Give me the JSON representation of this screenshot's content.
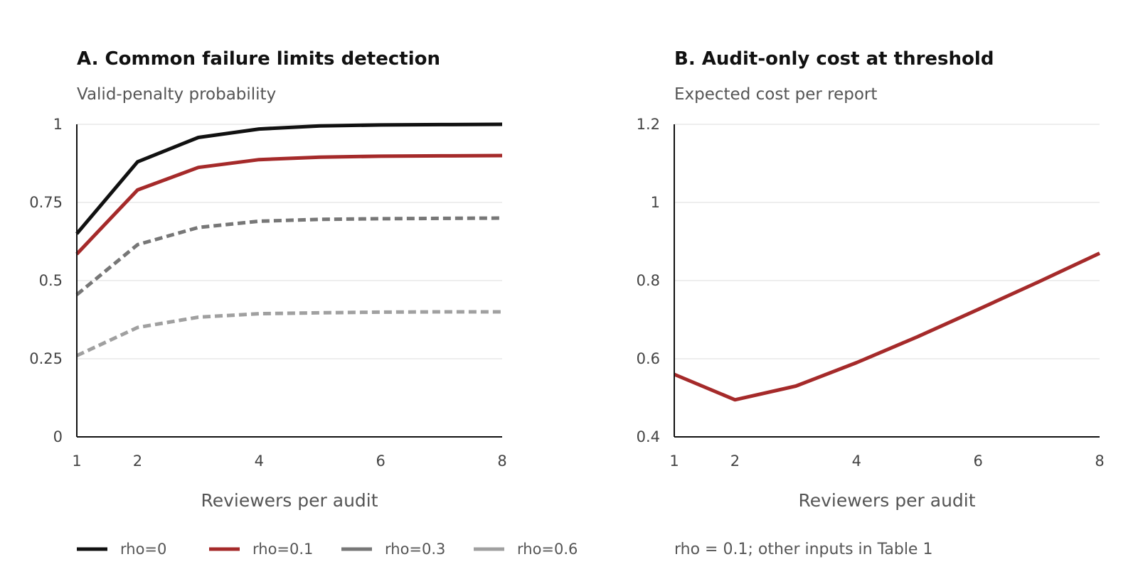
{
  "chart_data": [
    {
      "type": "line",
      "title": "A. Common failure limits detection",
      "subtitle": "Valid-penalty probability",
      "xlabel": "Reviewers per audit",
      "ylabel": "",
      "xlim": [
        1,
        8
      ],
      "ylim": [
        0,
        1
      ],
      "x_ticks": [
        "1",
        "2",
        "4",
        "6",
        "8"
      ],
      "y_ticks": [
        "0",
        "0.25",
        "0.5",
        "0.75",
        "1"
      ],
      "grid": true,
      "legend_position": "bottom",
      "x": [
        1,
        2,
        3,
        4,
        5,
        6,
        7,
        8
      ],
      "series": [
        {
          "name": "rho=0",
          "color": "#111111",
          "dashed": false,
          "values": [
            0.65,
            0.88,
            0.958,
            0.985,
            0.995,
            0.998,
            0.999,
            1.0
          ]
        },
        {
          "name": "rho=0.1",
          "color": "#a52a2a",
          "dashed": false,
          "values": [
            0.585,
            0.79,
            0.862,
            0.887,
            0.895,
            0.898,
            0.899,
            0.9
          ]
        },
        {
          "name": "rho=0.3",
          "color": "#777777",
          "dashed": true,
          "values": [
            0.455,
            0.615,
            0.67,
            0.69,
            0.696,
            0.698,
            0.699,
            0.7
          ]
        },
        {
          "name": "rho=0.6",
          "color": "#a0a0a0",
          "dashed": true,
          "values": [
            0.26,
            0.35,
            0.383,
            0.394,
            0.397,
            0.399,
            0.4,
            0.4
          ]
        }
      ]
    },
    {
      "type": "line",
      "title": "B. Audit-only cost at threshold",
      "subtitle": "Expected cost per report",
      "xlabel": "Reviewers per audit",
      "ylabel": "",
      "xlim": [
        1,
        8
      ],
      "ylim": [
        0.4,
        1.2
      ],
      "x_ticks": [
        "1",
        "2",
        "4",
        "6",
        "8"
      ],
      "y_ticks": [
        "0.4",
        "0.6",
        "0.8",
        "1",
        "1.2"
      ],
      "grid": true,
      "note": "rho = 0.1; other inputs in Table 1",
      "x": [
        1,
        2,
        3,
        4,
        5,
        6,
        7,
        8
      ],
      "series": [
        {
          "name": "",
          "color": "#a52a2a",
          "dashed": false,
          "values": [
            0.56,
            0.495,
            0.53,
            0.59,
            0.656,
            0.726,
            0.797,
            0.87
          ]
        }
      ]
    }
  ]
}
